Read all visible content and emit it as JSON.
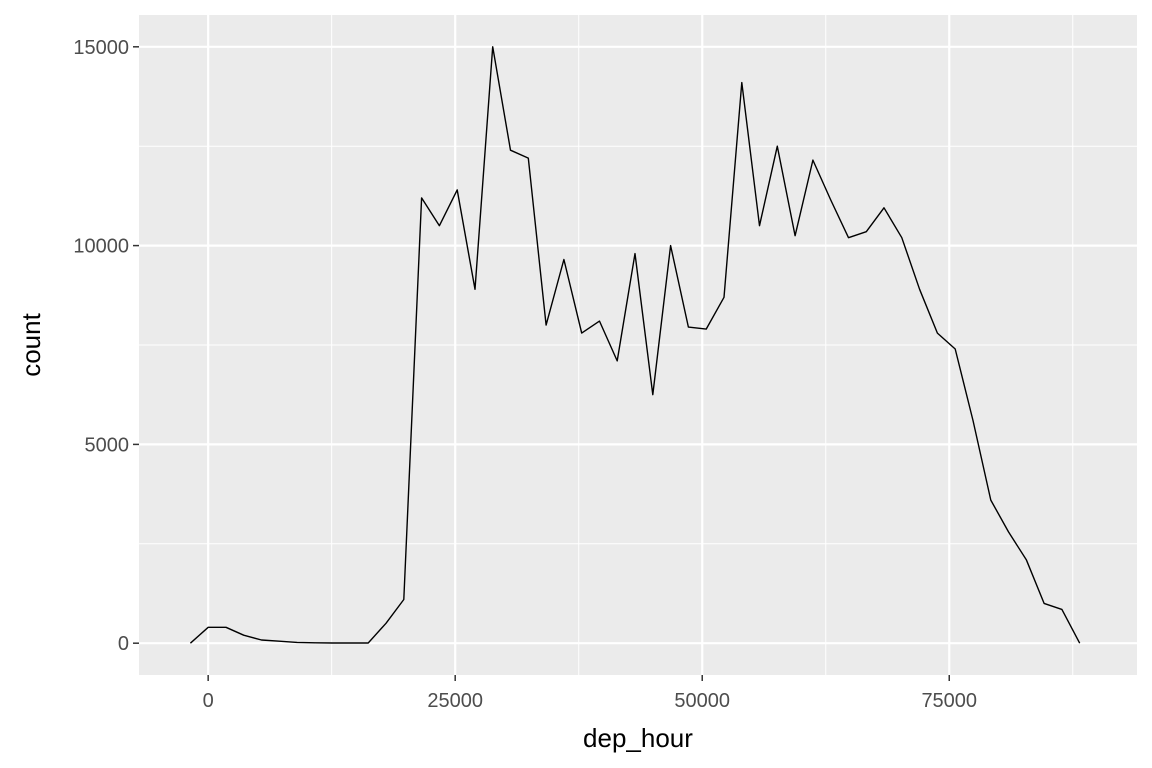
{
  "chart_data": {
    "type": "line",
    "title": "",
    "xlabel": "dep_hour",
    "ylabel": "count",
    "xlim": [
      -7000,
      94000
    ],
    "ylim": [
      -800,
      15800
    ],
    "x_ticks": [
      0,
      25000,
      50000,
      75000
    ],
    "x_tick_labels": [
      "0",
      "25000",
      "50000",
      "75000"
    ],
    "x_minor_ticks": [
      -12500,
      12500,
      37500,
      62500,
      87500
    ],
    "y_ticks": [
      0,
      5000,
      10000,
      15000
    ],
    "y_tick_labels": [
      "0",
      "5000",
      "10000",
      "15000"
    ],
    "y_minor_ticks": [
      2500,
      7500,
      12500
    ],
    "grid": true,
    "series": [
      {
        "line_color": "#000000",
        "x": [
          -1800,
          0,
          1800,
          3600,
          5400,
          7200,
          9000,
          10800,
          12600,
          14400,
          16200,
          18000,
          19800,
          21600,
          23400,
          25200,
          27000,
          28800,
          30600,
          32400,
          34200,
          36000,
          37800,
          39600,
          41400,
          43200,
          45000,
          46800,
          48600,
          50400,
          52200,
          54000,
          55800,
          57600,
          59400,
          61200,
          63000,
          64800,
          66600,
          68400,
          70200,
          72000,
          73800,
          75600,
          77400,
          79200,
          81000,
          82800,
          84600,
          86400,
          88200
        ],
        "y": [
          0,
          400,
          400,
          200,
          80,
          50,
          20,
          10,
          5,
          5,
          5,
          500,
          1100,
          11200,
          10500,
          11400,
          8900,
          15000,
          12400,
          12200,
          8000,
          9650,
          7800,
          8100,
          7100,
          9800,
          6250,
          10000,
          7950,
          7900,
          8700,
          14100,
          10500,
          12500,
          10250,
          12150,
          11150,
          10200,
          10350,
          10950,
          10200,
          8900,
          7800,
          7400,
          5600,
          3600,
          2800,
          2100,
          1000,
          850,
          0
        ]
      }
    ]
  }
}
